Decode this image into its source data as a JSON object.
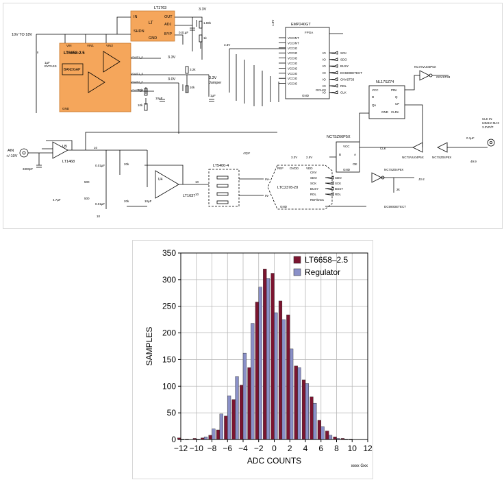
{
  "schematic": {
    "chips": {
      "lt1763": "LT1763",
      "lt6658": "LT6658-2.5",
      "bandgap": "BANDGAP",
      "fpga": "EMP240GT",
      "fpga_sub": "FPGA",
      "ltc2378": "LTC2378-20",
      "lt5400": "LT5400-4",
      "lt1468": "LT1468",
      "u5": "U5",
      "lt1637": "LT1637",
      "u4": "U4",
      "nl17sz74": "NL17SZ74",
      "nc7sz66": "NC7SZ66P5X",
      "nc7sz04": "NC7SZ04P5X",
      "nc7svu04_top": "NC7SVU04P5X",
      "nc7svu04_mid": "NC7SVU04P5X",
      "nc7sz04_mid": "NC7SZ04P5X"
    },
    "labels": {
      "vin": "10V TO 18V",
      "ain": "AIN",
      "ain_range": "+/-10V",
      "v33": "3.3V",
      "v30": "3.0V",
      "v18": "1.8V",
      "v25": "2.5V",
      "jumper": "Jumper",
      "bypass": "BYPASS",
      "clk_in": "CLK IN",
      "clk_spec1": "64MHz MAX",
      "clk_spec2": "3.3VP/P",
      "dc590": "DC590DETECT",
      "j3": "J3-2"
    },
    "lt1763_pins": [
      "IN",
      "SHDN",
      "GND",
      "OUT",
      "ADJ",
      "BYP"
    ],
    "lt6658_pins": [
      "VIN",
      "VIN1",
      "VIN2",
      "GND",
      "VOUT1_F",
      "VOUT1_S",
      "VOUT2_F",
      "VOUT2_S"
    ],
    "fpga_left_pins": [
      "VCCINT",
      "VCCINT",
      "VCCIO",
      "VCCIO",
      "VCCIO",
      "VCCIO",
      "VCCIO",
      "VCCIO",
      "VCCIO",
      "VCCIO"
    ],
    "fpga_right_signals": [
      "SCK",
      "SDO",
      "BUSY",
      "DC590DETECT",
      "CNVST33",
      "RDL",
      "CLK"
    ],
    "fpga_bottom": [
      "GND",
      "GCLK0"
    ],
    "adc_top_pins": [
      "REF",
      "OVDD",
      "VDD"
    ],
    "adc_left_pins": [
      "IN+",
      "IN-"
    ],
    "adc_right_pins": [
      "CNV",
      "SDO",
      "SCK",
      "BUSY",
      "RDL",
      "REF/DGC"
    ],
    "adc_gnd": "GND",
    "adc_signals": [
      "SDO",
      "SCK",
      "BUSY",
      "RDL"
    ],
    "flipflop_pins": [
      "VCC",
      "PRn",
      "D",
      "Q",
      "CP",
      "Qn",
      "CLRn",
      "GND"
    ],
    "switch_pins": [
      "VCC",
      "B",
      "A",
      "OE",
      "GND"
    ],
    "components": [
      "1.69k",
      "1k",
      "0.01µF",
      "1µF",
      "3.2k",
      "10k",
      "10k",
      "10k",
      "10µF",
      "1µF",
      "0.1µF",
      "0.1µF",
      "0.1µF",
      "0.1µF",
      "3300pF",
      "47pF",
      "10",
      "0.01µF",
      "20k",
      "20k",
      "10",
      "4.7µF",
      "500",
      "500",
      "10",
      "1k",
      "1k",
      "1k",
      "1k",
      "10",
      "10",
      "0.01µF",
      "10µF",
      "33",
      "33",
      "33",
      "1k",
      "1k",
      "49.9",
      "0.1µF",
      "2k",
      "1k"
    ]
  },
  "chart_data": {
    "type": "bar",
    "xlabel": "ADC COUNTS",
    "ylabel": "SAMPLES",
    "xlim": [
      -12,
      12
    ],
    "ylim": [
      0,
      350
    ],
    "xticks": [
      -12,
      -10,
      -8,
      -6,
      -4,
      -2,
      0,
      2,
      4,
      6,
      8,
      10,
      12
    ],
    "yticks": [
      0,
      50,
      100,
      150,
      200,
      250,
      300,
      350
    ],
    "grid": true,
    "legend_position": "top-right",
    "categories": [
      -12,
      -11,
      -10,
      -9,
      -8,
      -7,
      -6,
      -5,
      -4,
      -3,
      -2,
      -1,
      0,
      1,
      2,
      3,
      4,
      5,
      6,
      7,
      8,
      9,
      10,
      11,
      12
    ],
    "series": [
      {
        "name": "LT6658–2.5",
        "color": "#7b1530",
        "values": [
          3,
          1,
          2,
          3,
          8,
          18,
          44,
          75,
          102,
          135,
          258,
          320,
          312,
          260,
          234,
          138,
          112,
          80,
          36,
          16,
          5,
          2,
          1,
          0,
          0
        ]
      },
      {
        "name": "Regulator",
        "color": "#8a90c8",
        "values": [
          1,
          0,
          1,
          5,
          20,
          48,
          82,
          118,
          162,
          218,
          286,
          302,
          238,
          225,
          170,
          135,
          105,
          68,
          24,
          8,
          2,
          1,
          0,
          0,
          0
        ]
      }
    ],
    "footer": "xxxx Gxx"
  }
}
